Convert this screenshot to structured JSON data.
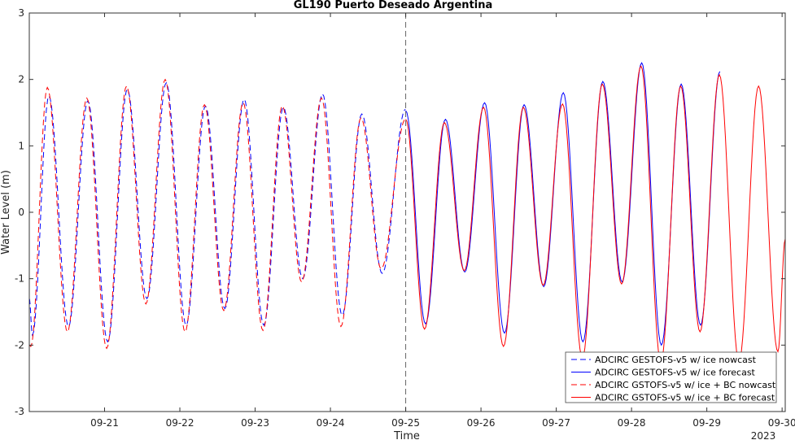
{
  "chart_data": {
    "type": "line",
    "title": "GL190 Puerto Deseado Argentina",
    "xlabel": "Time",
    "ylabel": "Water Level (m)",
    "year_label": "2023",
    "xlim": [
      "2023-09-20T00:00",
      "2023-09-30T01:00"
    ],
    "ylim": [
      -3,
      3
    ],
    "yticks": [
      -3,
      -2,
      -1,
      0,
      1,
      2,
      3
    ],
    "xticks": [
      {
        "date": "2023-09-21T00:00",
        "label": "09-21"
      },
      {
        "date": "2023-09-22T00:00",
        "label": "09-22"
      },
      {
        "date": "2023-09-23T00:00",
        "label": "09-23"
      },
      {
        "date": "2023-09-24T00:00",
        "label": "09-24"
      },
      {
        "date": "2023-09-25T00:00",
        "label": "09-25"
      },
      {
        "date": "2023-09-26T00:00",
        "label": "09-26"
      },
      {
        "date": "2023-09-27T00:00",
        "label": "09-27"
      },
      {
        "date": "2023-09-28T00:00",
        "label": "09-28"
      },
      {
        "date": "2023-09-29T00:00",
        "label": "09-29"
      },
      {
        "date": "2023-09-30T00:00",
        "label": "09-30"
      }
    ],
    "nowcast_forecast_boundary": "2023-09-25T00:00",
    "legend_position": "bottom-right",
    "grid": false,
    "series": [
      {
        "name": "ADCIRC GESTOFS-v5 w/ ice nowcast",
        "color": "#0000ff",
        "style": "dashed",
        "extrema": [
          [
            "2023-09-20T00:00",
            -1.3
          ],
          [
            "2023-09-20T01:00",
            -1.85
          ],
          [
            "2023-09-20T06:15",
            1.75
          ],
          [
            "2023-09-20T12:30",
            -1.72
          ],
          [
            "2023-09-20T18:40",
            1.68
          ],
          [
            "2023-09-21T01:00",
            -1.95
          ],
          [
            "2023-09-21T07:15",
            1.85
          ],
          [
            "2023-09-21T13:30",
            -1.3
          ],
          [
            "2023-09-21T19:40",
            1.95
          ],
          [
            "2023-09-22T02:00",
            -1.7
          ],
          [
            "2023-09-22T08:10",
            1.6
          ],
          [
            "2023-09-22T14:20",
            -1.45
          ],
          [
            "2023-09-22T20:30",
            1.7
          ],
          [
            "2023-09-23T02:45",
            -1.7
          ],
          [
            "2023-09-23T09:00",
            1.58
          ],
          [
            "2023-09-23T15:10",
            -1.0
          ],
          [
            "2023-09-23T21:30",
            1.78
          ],
          [
            "2023-09-24T03:45",
            -1.55
          ],
          [
            "2023-09-24T10:00",
            1.48
          ],
          [
            "2023-09-24T16:30",
            -0.92
          ],
          [
            "2023-09-24T23:55",
            1.55
          ]
        ]
      },
      {
        "name": "ADCIRC GESTOFS-v5 w/ ice forecast",
        "color": "#0000ff",
        "style": "solid",
        "extrema": [
          [
            "2023-09-25T00:00",
            1.53
          ],
          [
            "2023-09-25T06:20",
            -1.68
          ],
          [
            "2023-09-25T12:40",
            1.4
          ],
          [
            "2023-09-25T18:50",
            -0.9
          ],
          [
            "2023-09-26T01:10",
            1.65
          ],
          [
            "2023-09-26T07:30",
            -1.82
          ],
          [
            "2023-09-26T13:45",
            1.62
          ],
          [
            "2023-09-26T20:00",
            -1.12
          ],
          [
            "2023-09-27T02:15",
            1.8
          ],
          [
            "2023-09-27T08:30",
            -1.95
          ],
          [
            "2023-09-27T14:50",
            1.97
          ],
          [
            "2023-09-27T21:00",
            -1.05
          ],
          [
            "2023-09-28T03:15",
            2.25
          ],
          [
            "2023-09-28T09:30",
            -2.0
          ],
          [
            "2023-09-28T15:50",
            1.93
          ],
          [
            "2023-09-28T22:00",
            -1.7
          ],
          [
            "2023-09-29T04:10",
            2.12
          ]
        ]
      },
      {
        "name": "ADCIRC GSTOFS-v5 w/ ice + BC nowcast",
        "color": "#ff0000",
        "style": "dashed",
        "extrema": [
          [
            "2023-09-20T00:00",
            -2.0
          ],
          [
            "2023-09-20T00:30",
            -2.02
          ],
          [
            "2023-09-20T05:45",
            1.88
          ],
          [
            "2023-09-20T12:10",
            -1.8
          ],
          [
            "2023-09-20T18:20",
            1.72
          ],
          [
            "2023-09-21T00:40",
            -2.05
          ],
          [
            "2023-09-21T07:00",
            1.9
          ],
          [
            "2023-09-21T13:10",
            -1.38
          ],
          [
            "2023-09-21T19:20",
            2.0
          ],
          [
            "2023-09-22T01:40",
            -1.8
          ],
          [
            "2023-09-22T07:50",
            1.62
          ],
          [
            "2023-09-22T14:00",
            -1.48
          ],
          [
            "2023-09-22T20:10",
            1.65
          ],
          [
            "2023-09-23T02:30",
            -1.78
          ],
          [
            "2023-09-23T08:40",
            1.6
          ],
          [
            "2023-09-23T14:50",
            -1.05
          ],
          [
            "2023-09-23T21:10",
            1.72
          ],
          [
            "2023-09-24T03:20",
            -1.72
          ],
          [
            "2023-09-24T09:45",
            1.42
          ],
          [
            "2023-09-24T16:10",
            -0.85
          ],
          [
            "2023-09-24T23:55",
            1.4
          ]
        ]
      },
      {
        "name": "ADCIRC GSTOFS-v5 w/ ice + BC forecast",
        "color": "#ff0000",
        "style": "solid",
        "extrema": [
          [
            "2023-09-25T00:00",
            1.4
          ],
          [
            "2023-09-25T06:00",
            -1.76
          ],
          [
            "2023-09-25T12:20",
            1.35
          ],
          [
            "2023-09-25T18:40",
            -0.88
          ],
          [
            "2023-09-26T00:50",
            1.58
          ],
          [
            "2023-09-26T07:10",
            -2.02
          ],
          [
            "2023-09-26T13:30",
            1.58
          ],
          [
            "2023-09-26T19:50",
            -1.1
          ],
          [
            "2023-09-27T02:00",
            1.63
          ],
          [
            "2023-09-27T08:20",
            -2.2
          ],
          [
            "2023-09-27T14:40",
            1.93
          ],
          [
            "2023-09-27T20:50",
            -1.08
          ],
          [
            "2023-09-28T03:00",
            2.2
          ],
          [
            "2023-09-28T09:20",
            -2.25
          ],
          [
            "2023-09-28T15:40",
            1.9
          ],
          [
            "2023-09-28T21:50",
            -1.8
          ],
          [
            "2023-09-29T04:00",
            2.07
          ],
          [
            "2023-09-29T10:15",
            -2.25
          ],
          [
            "2023-09-29T16:30",
            1.9
          ],
          [
            "2023-09-29T22:40",
            -2.1
          ],
          [
            "2023-09-30T01:00",
            -0.4
          ]
        ]
      }
    ]
  }
}
